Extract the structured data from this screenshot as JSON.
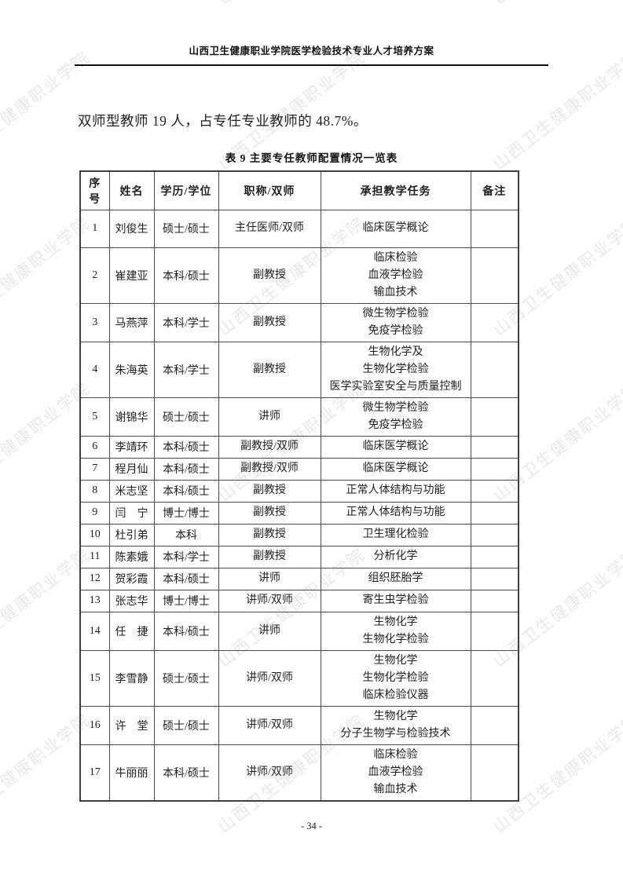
{
  "page": {
    "header_title": "山西卫生健康职业学院医学检验技术专业人才培养方案",
    "body_text": "双师型教师 19 人，占专任专业教师的 48.7%。",
    "table_caption": "表 9  主要专任教师配置情况一览表",
    "page_number": "- 34 -",
    "watermark_text": "山西卫生健康职业学院"
  },
  "table": {
    "columns": [
      "序号",
      "姓名",
      "学历/学位",
      "职称/双师",
      "承担教学任务",
      "备注"
    ],
    "rows": [
      {
        "no": "1",
        "name": "刘俊生",
        "degree": "硕士/硕士",
        "title": "主任医师/双师",
        "tasks": [
          "临床医学概论"
        ],
        "note": ""
      },
      {
        "no": "2",
        "name": "崔建亚",
        "degree": "本科/硕士",
        "title": "副教授",
        "tasks": [
          "临床检验",
          "血液学检验",
          "输血技术"
        ],
        "note": ""
      },
      {
        "no": "3",
        "name": "马燕萍",
        "degree": "本科/学士",
        "title": "副教授",
        "tasks": [
          "微生物学检验",
          "免疫学检验"
        ],
        "note": ""
      },
      {
        "no": "4",
        "name": "朱海英",
        "degree": "本科/学士",
        "title": "副教授",
        "tasks": [
          "生物化学及",
          "生物化学检验",
          "医学实验室安全与质量控制"
        ],
        "note": ""
      },
      {
        "no": "5",
        "name": "谢锦华",
        "degree": "硕士/硕士",
        "title": "讲师",
        "tasks": [
          "微生物学检验",
          "免疫学检验"
        ],
        "note": ""
      },
      {
        "no": "6",
        "name": "李靖环",
        "degree": "本科/硕士",
        "title": "副教授/双师",
        "tasks": [
          "临床医学概论"
        ],
        "note": ""
      },
      {
        "no": "7",
        "name": "程月仙",
        "degree": "本科/硕士",
        "title": "副教授/双师",
        "tasks": [
          "临床医学概论"
        ],
        "note": ""
      },
      {
        "no": "8",
        "name": "米志坚",
        "degree": "本科/硕士",
        "title": "副教授",
        "tasks": [
          "正常人体结构与功能"
        ],
        "note": ""
      },
      {
        "no": "9",
        "name": "闫　宁",
        "degree": "博士/博士",
        "title": "副教授",
        "tasks": [
          "正常人体结构与功能"
        ],
        "note": ""
      },
      {
        "no": "10",
        "name": "杜引弟",
        "degree": "本科",
        "title": "副教授",
        "tasks": [
          "卫生理化检验"
        ],
        "note": ""
      },
      {
        "no": "11",
        "name": "陈素娥",
        "degree": "本科/学士",
        "title": "副教授",
        "tasks": [
          "分析化学"
        ],
        "note": ""
      },
      {
        "no": "12",
        "name": "贺彩霞",
        "degree": "本科/硕士",
        "title": "讲师",
        "tasks": [
          "组织胚胎学"
        ],
        "note": ""
      },
      {
        "no": "13",
        "name": "张志华",
        "degree": "博士/博士",
        "title": "讲师/双师",
        "tasks": [
          "寄生虫学检验"
        ],
        "note": ""
      },
      {
        "no": "14",
        "name": "任　捷",
        "degree": "本科/硕士",
        "title": "讲师",
        "tasks": [
          "生物化学",
          "生物化学检验"
        ],
        "note": ""
      },
      {
        "no": "15",
        "name": "李雪静",
        "degree": "硕士/硕士",
        "title": "讲师/双师",
        "tasks": [
          "生物化学",
          "生物化学检验",
          "临床检验仪器"
        ],
        "note": ""
      },
      {
        "no": "16",
        "name": "许　堂",
        "degree": "硕士/硕士",
        "title": "讲师/双师",
        "tasks": [
          "生物化学",
          "分子生物学与检验技术"
        ],
        "note": ""
      },
      {
        "no": "17",
        "name": "牛丽丽",
        "degree": "本科/硕士",
        "title": "讲师/双师",
        "tasks": [
          "临床检验",
          "血液学检验",
          "输血技术"
        ],
        "note": ""
      }
    ]
  }
}
